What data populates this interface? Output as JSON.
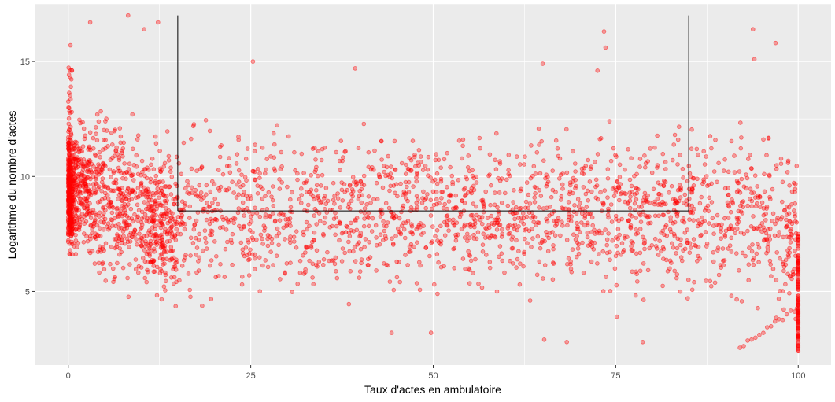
{
  "chart_data": {
    "type": "scatter",
    "title": "",
    "xlabel": "Taux d'actes en ambulatoire",
    "ylabel": "Logarithme du nombre d'actes",
    "xlim": [
      -4.5,
      104.5
    ],
    "ylim": [
      1.8,
      17.5
    ],
    "x_ticks": [
      0,
      25,
      50,
      75,
      100
    ],
    "x_tick_labels": [
      "0",
      "25",
      "50",
      "75",
      "100"
    ],
    "y_ticks": [
      5,
      10,
      15
    ],
    "y_tick_labels": [
      "5",
      "10",
      "15"
    ],
    "grid": true,
    "legend": "none",
    "point_color": "#ff0000",
    "point_alpha": 0.35,
    "panel_background": "#ebebeb",
    "grid_color": "#ffffff",
    "sample_points": [
      {
        "x": 0.3,
        "y": 15.7
      },
      {
        "x": 0.5,
        "y": 14.6
      },
      {
        "x": 3.0,
        "y": 16.7
      },
      {
        "x": 8.2,
        "y": 17.0
      },
      {
        "x": 10.4,
        "y": 16.4
      },
      {
        "x": 12.3,
        "y": 16.7
      },
      {
        "x": 25.3,
        "y": 15.0
      },
      {
        "x": 39.3,
        "y": 14.7
      },
      {
        "x": 65.0,
        "y": 14.9
      },
      {
        "x": 72.5,
        "y": 14.6
      },
      {
        "x": 73.4,
        "y": 16.3
      },
      {
        "x": 73.6,
        "y": 15.6
      },
      {
        "x": 93.8,
        "y": 16.4
      },
      {
        "x": 94.0,
        "y": 15.1
      },
      {
        "x": 96.9,
        "y": 15.8
      },
      {
        "x": 65.2,
        "y": 2.9
      },
      {
        "x": 68.3,
        "y": 2.8
      },
      {
        "x": 78.7,
        "y": 2.8
      },
      {
        "x": 100.0,
        "y": 2.5
      },
      {
        "x": 100.0,
        "y": 3.5
      },
      {
        "x": 100.0,
        "y": 7.5
      },
      {
        "x": 49.7,
        "y": 3.2
      },
      {
        "x": 44.3,
        "y": 3.2
      }
    ],
    "annotation": {
      "type": "bracket",
      "x_left": 15,
      "x_right": 85,
      "y_top": 17.0,
      "y_bottom": 8.5,
      "color": "#000000"
    }
  }
}
